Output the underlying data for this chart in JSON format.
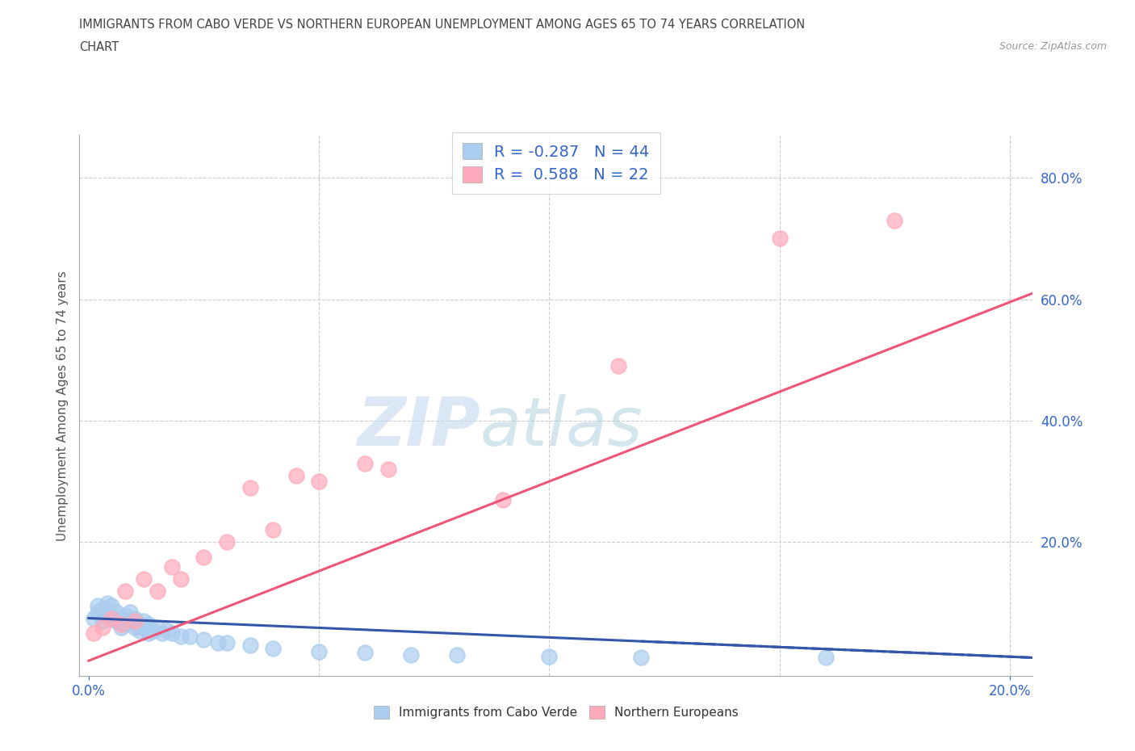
{
  "title_line1": "IMMIGRANTS FROM CABO VERDE VS NORTHERN EUROPEAN UNEMPLOYMENT AMONG AGES 65 TO 74 YEARS CORRELATION",
  "title_line2": "CHART",
  "source_text": "Source: ZipAtlas.com",
  "ylabel": "Unemployment Among Ages 65 to 74 years",
  "xlim": [
    -0.002,
    0.205
  ],
  "ylim": [
    -0.02,
    0.87
  ],
  "xtick_positions": [
    0.0,
    0.2
  ],
  "xtick_labels": [
    "0.0%",
    "20.0%"
  ],
  "ytick_positions": [
    0.2,
    0.4,
    0.6,
    0.8
  ],
  "ytick_labels": [
    "20.0%",
    "40.0%",
    "60.0%",
    "80.0%"
  ],
  "grid_color": "#cccccc",
  "background_color": "#ffffff",
  "cabo_verde_color": "#aaccee",
  "northern_eu_color": "#ffaabb",
  "cabo_verde_line_color": "#3355aa",
  "northern_eu_line_color": "#ee5577",
  "cabo_verde_R": -0.287,
  "cabo_verde_N": 44,
  "northern_eu_R": 0.588,
  "northern_eu_N": 22,
  "watermark_zip": "ZIP",
  "watermark_atlas": "atlas",
  "cabo_verde_scatter_x": [
    0.001,
    0.002,
    0.002,
    0.003,
    0.003,
    0.004,
    0.004,
    0.005,
    0.005,
    0.006,
    0.006,
    0.007,
    0.007,
    0.008,
    0.008,
    0.009,
    0.009,
    0.01,
    0.01,
    0.011,
    0.011,
    0.012,
    0.012,
    0.013,
    0.013,
    0.014,
    0.015,
    0.016,
    0.017,
    0.018,
    0.02,
    0.022,
    0.025,
    0.028,
    0.03,
    0.035,
    0.04,
    0.05,
    0.06,
    0.07,
    0.08,
    0.1,
    0.12,
    0.16
  ],
  "cabo_verde_scatter_y": [
    0.075,
    0.085,
    0.095,
    0.07,
    0.09,
    0.08,
    0.1,
    0.075,
    0.095,
    0.07,
    0.085,
    0.06,
    0.075,
    0.065,
    0.08,
    0.07,
    0.085,
    0.06,
    0.075,
    0.055,
    0.065,
    0.06,
    0.07,
    0.05,
    0.065,
    0.055,
    0.06,
    0.05,
    0.055,
    0.05,
    0.045,
    0.045,
    0.04,
    0.035,
    0.035,
    0.03,
    0.025,
    0.02,
    0.018,
    0.015,
    0.015,
    0.012,
    0.01,
    0.01
  ],
  "northern_eu_scatter_x": [
    0.001,
    0.003,
    0.005,
    0.007,
    0.008,
    0.01,
    0.012,
    0.015,
    0.018,
    0.02,
    0.025,
    0.03,
    0.035,
    0.04,
    0.045,
    0.05,
    0.06,
    0.065,
    0.09,
    0.115,
    0.15,
    0.175
  ],
  "northern_eu_scatter_y": [
    0.05,
    0.06,
    0.075,
    0.065,
    0.12,
    0.07,
    0.14,
    0.12,
    0.16,
    0.14,
    0.175,
    0.2,
    0.29,
    0.22,
    0.31,
    0.3,
    0.33,
    0.32,
    0.27,
    0.49,
    0.7,
    0.73
  ],
  "cabo_verde_trendline_x": [
    0.0,
    0.205
  ],
  "cabo_verde_trendline_y": [
    0.075,
    0.01
  ],
  "northern_eu_trendline_x": [
    0.0,
    0.205
  ],
  "northern_eu_trendline_y": [
    0.005,
    0.61
  ]
}
